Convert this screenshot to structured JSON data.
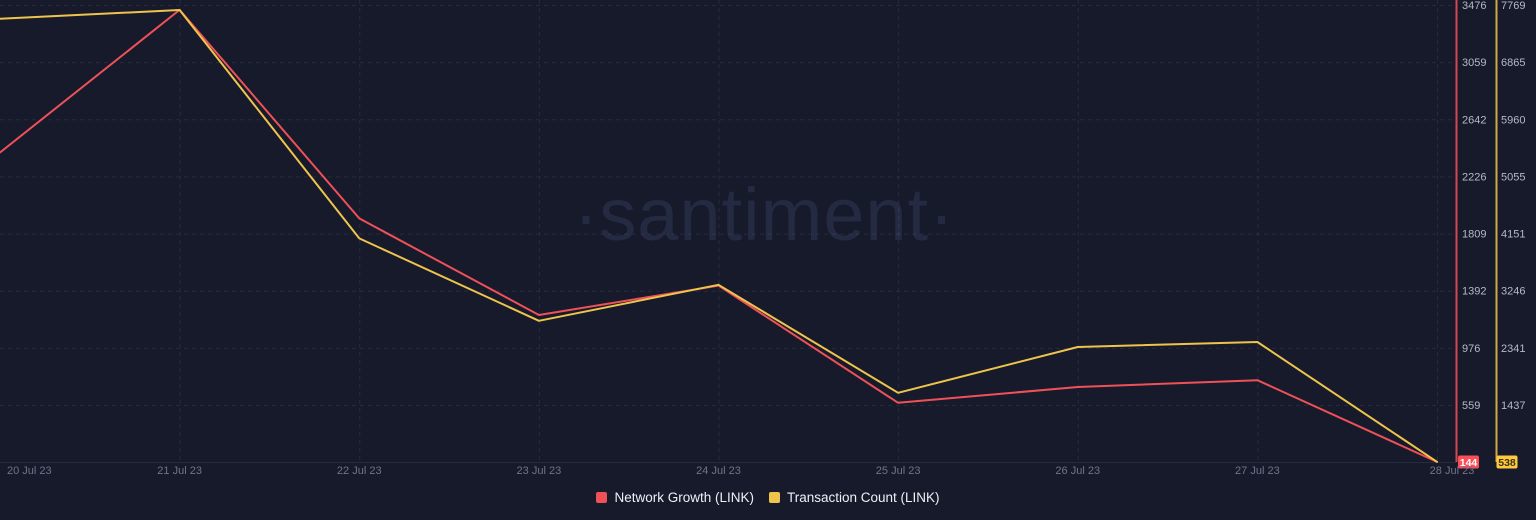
{
  "watermark": "·santiment·",
  "colors": {
    "background": "#171a2b",
    "grid": "rgba(255,255,255,0.07)",
    "baseline": "#262b40",
    "axis_label": "#b4b9c9",
    "x_label": "#6f7489",
    "watermark": "#242a42",
    "red_line": "#ef5158",
    "yellow_line": "#eec44d",
    "red_axis": "#d64850",
    "yellow_axis": "#cfa943",
    "red_badge_bg": "#fb4e58",
    "red_badge_text": "#ffffff",
    "yellow_badge_bg": "#fec93e",
    "yellow_badge_text": "#3b3413",
    "legend_text": "#eef0f6"
  },
  "chart_data": {
    "type": "line",
    "x": [
      "20 Jul 23",
      "21 Jul 23",
      "22 Jul 23",
      "23 Jul 23",
      "24 Jul 23",
      "25 Jul 23",
      "26 Jul 23",
      "27 Jul 23",
      "28 Jul 23"
    ],
    "grid": true,
    "legend_position": "bottom",
    "series": [
      {
        "name": "Network Growth (LINK)",
        "color": "#ef5158",
        "values": [
          2400,
          3440,
          1920,
          1215,
          1430,
          575,
          690,
          740,
          144
        ],
        "axis_ticks": [
          3476,
          3059,
          2642,
          2226,
          1809,
          1392,
          976,
          559
        ],
        "axis_range": [
          3476,
          559
        ],
        "current": "144"
      },
      {
        "name": "Transaction Count (LINK)",
        "color": "#eec44d",
        "values": [
          7550,
          7690,
          4075,
          2770,
          3340,
          1630,
          2355,
          2435,
          538
        ],
        "axis_ticks": [
          7769,
          6865,
          5960,
          5055,
          4151,
          3246,
          2341,
          1437
        ],
        "axis_range": [
          7769,
          1437
        ],
        "current": "538"
      }
    ]
  },
  "legend": {
    "items": [
      {
        "label": "Network Growth (LINK)",
        "color": "#ef5158"
      },
      {
        "label": "Transaction Count (LINK)",
        "color": "#eec44d"
      }
    ]
  }
}
